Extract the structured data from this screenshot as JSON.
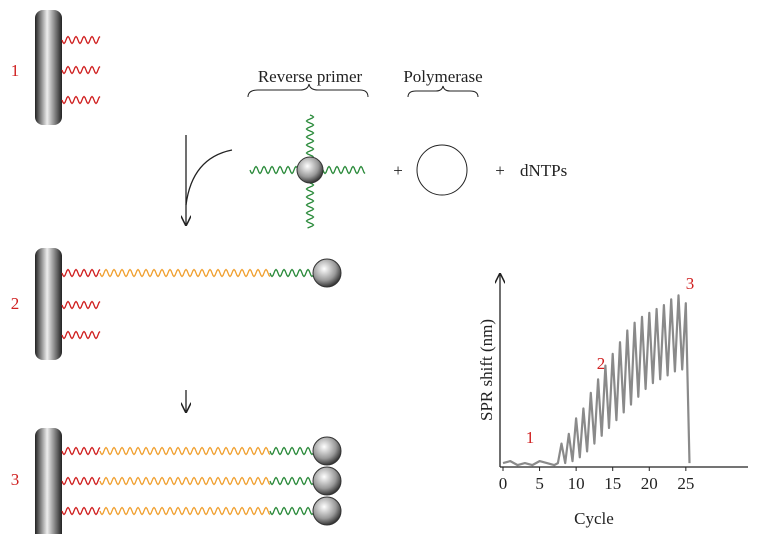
{
  "diagram": {
    "steps": [
      "1",
      "2",
      "3"
    ],
    "reagents": {
      "primer": "Reverse primer",
      "polymerase": "Polymerase",
      "plus": "+",
      "dntps": "dNTPs"
    }
  },
  "chart_data": {
    "type": "line",
    "y_label": "SPR shift (nm)",
    "x_label": "Cycle",
    "annotations": [
      "1",
      "2",
      "3"
    ],
    "xlim": [
      0,
      33.5
    ],
    "ylim": [
      0,
      100
    ],
    "xticks": [
      0,
      5,
      10,
      15,
      20,
      25
    ],
    "color": "#8a8a8a",
    "x": [
      0,
      1,
      2,
      3,
      4,
      5,
      6,
      7,
      7.5,
      8,
      8.5,
      9,
      9.5,
      10,
      10.5,
      11,
      11.5,
      12,
      12.5,
      13,
      13.5,
      14,
      14.5,
      15,
      15.5,
      16,
      16.5,
      17,
      17.5,
      18,
      18.5,
      19,
      19.5,
      20,
      20.5,
      21,
      21.5,
      22,
      22.5,
      23,
      23.5,
      24,
      24.5,
      25,
      25.5
    ],
    "values": [
      2,
      3,
      1,
      2,
      1,
      3,
      2,
      1,
      2,
      12,
      2,
      17,
      3,
      25,
      5,
      30,
      8,
      38,
      12,
      45,
      16,
      52,
      20,
      58,
      24,
      64,
      28,
      70,
      32,
      74,
      36,
      77,
      40,
      79,
      43,
      81,
      45,
      83,
      47,
      86,
      49,
      88,
      50,
      84,
      2
    ]
  }
}
